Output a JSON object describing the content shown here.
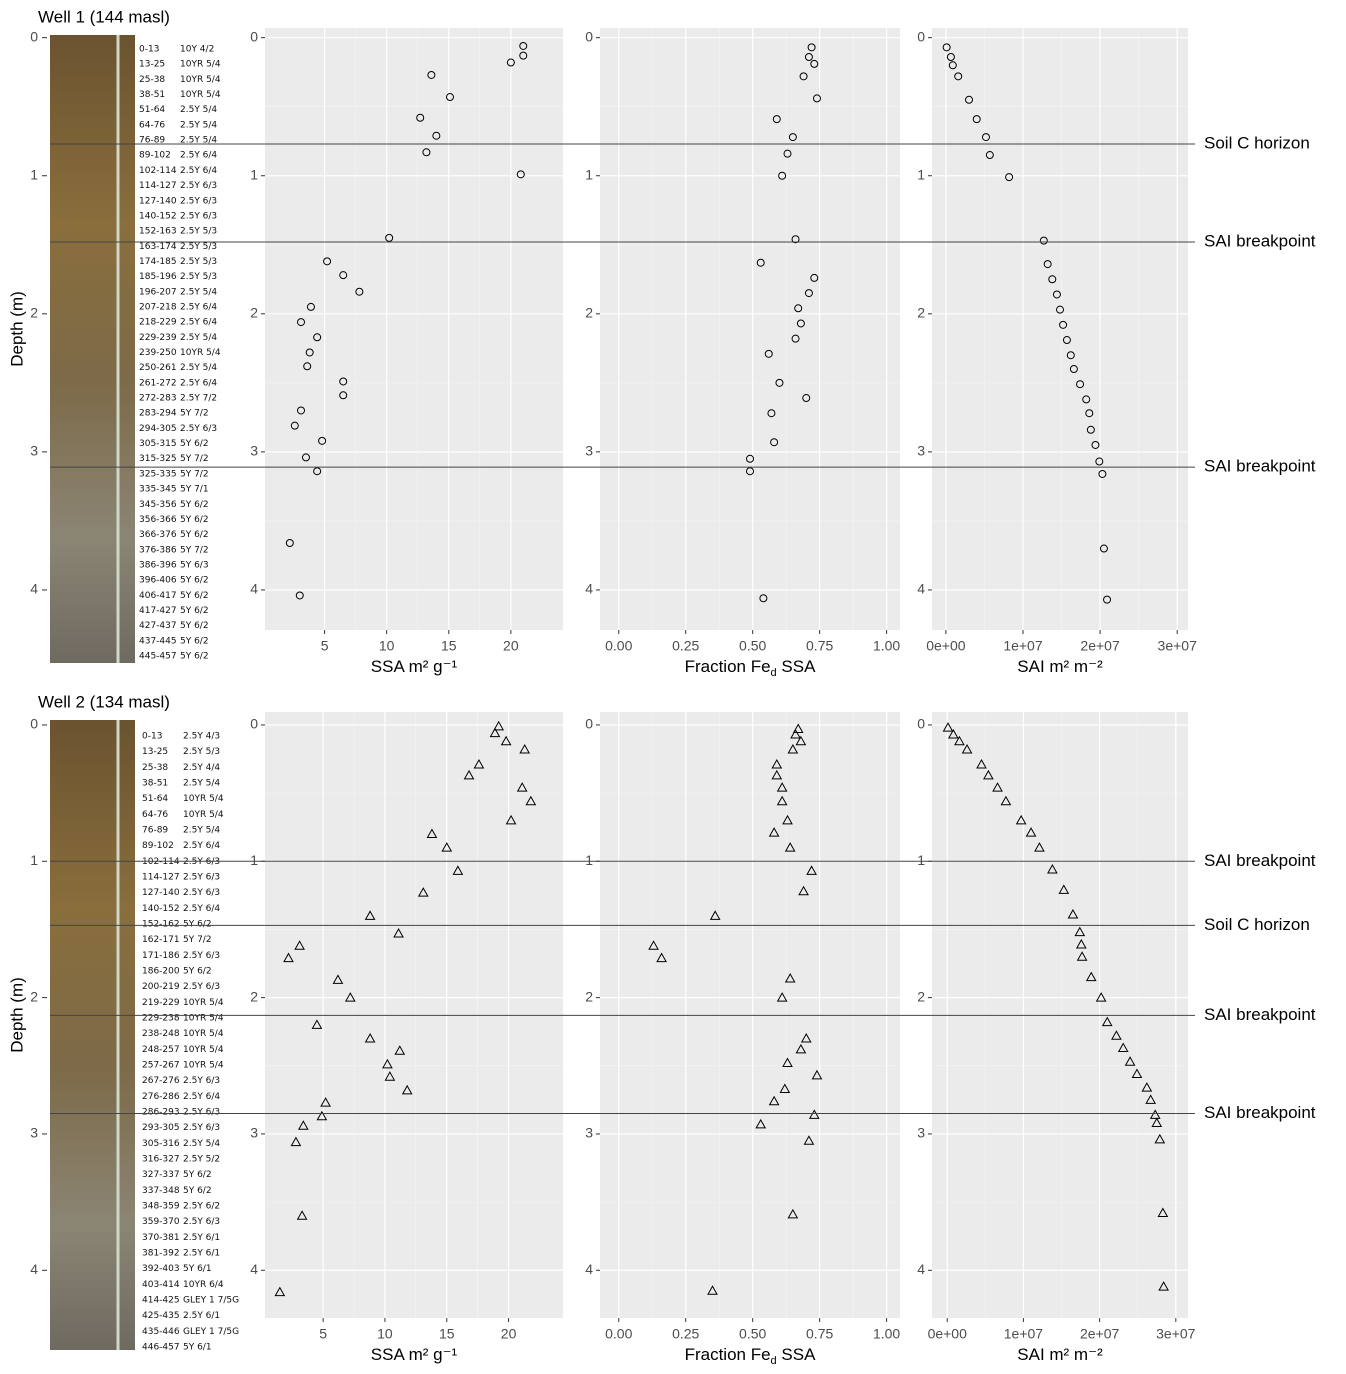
{
  "wells": [
    {
      "title": "Well 1 (144 masl)",
      "ylabel": "Depth (m)",
      "ylim": [
        -0.07,
        4.29
      ],
      "yticks": [
        0,
        1,
        2,
        3,
        4
      ],
      "layers": [
        [
          "0-13",
          "10Y 4/2"
        ],
        [
          "13-25",
          "10YR 5/4"
        ],
        [
          "25-38",
          "10YR 5/4"
        ],
        [
          "38-51",
          "10YR 5/4"
        ],
        [
          "51-64",
          "2.5Y 5/4"
        ],
        [
          "64-76",
          "2.5Y 5/4"
        ],
        [
          "76-89",
          "2.5Y 5/4"
        ],
        [
          "89-102",
          "2.5Y 6/4"
        ],
        [
          "102-114",
          "2.5Y 6/4"
        ],
        [
          "114-127",
          "2.5Y 6/3"
        ],
        [
          "127-140",
          "2.5Y 6/3"
        ],
        [
          "140-152",
          "2.5Y 6/3"
        ],
        [
          "152-163",
          "2.5Y 5/3"
        ],
        [
          "163-174",
          "2.5Y 5/3"
        ],
        [
          "174-185",
          "2.5Y 5/3"
        ],
        [
          "185-196",
          "2.5Y 5/3"
        ],
        [
          "196-207",
          "2.5Y 5/4"
        ],
        [
          "207-218",
          "2.5Y 6/4"
        ],
        [
          "218-229",
          "2.5Y 6/4"
        ],
        [
          "229-239",
          "2.5Y 5/4"
        ],
        [
          "239-250",
          "10YR 5/4"
        ],
        [
          "250-261",
          "2.5Y 5/4"
        ],
        [
          "261-272",
          "2.5Y 6/4"
        ],
        [
          "272-283",
          "2.5Y 7/2"
        ],
        [
          "283-294",
          "5Y 7/2"
        ],
        [
          "294-305",
          "2.5Y 6/3"
        ],
        [
          "305-315",
          "5Y 6/2"
        ],
        [
          "315-325",
          "5Y 7/2"
        ],
        [
          "325-335",
          "5Y 7/2"
        ],
        [
          "335-345",
          "5Y 7/1"
        ],
        [
          "345-356",
          "5Y 6/2"
        ],
        [
          "356-366",
          "5Y 6/2"
        ],
        [
          "366-376",
          "5Y 6/2"
        ],
        [
          "376-386",
          "5Y 7/2"
        ],
        [
          "386-396",
          "5Y 6/3"
        ],
        [
          "396-406",
          "5Y 6/2"
        ],
        [
          "406-417",
          "5Y 6/2"
        ],
        [
          "417-427",
          "5Y 6/2"
        ],
        [
          "427-437",
          "5Y 6/2"
        ],
        [
          "437-445",
          "5Y 6/2"
        ],
        [
          "445-457",
          "5Y 6/2"
        ]
      ],
      "lines": [
        {
          "depth": 0.77,
          "label": "Soil C horizon"
        },
        {
          "depth": 1.48,
          "label": "SAI breakpoint"
        },
        {
          "depth": 3.11,
          "label": "SAI breakpoint"
        }
      ]
    },
    {
      "title": "Well 2 (134 masl)",
      "ylabel": "Depth (m)",
      "ylim": [
        -0.095,
        4.35
      ],
      "yticks": [
        0,
        1,
        2,
        3,
        4
      ],
      "layers": [
        [
          "0-13",
          "2.5Y 4/3"
        ],
        [
          "13-25",
          "2.5Y 5/3"
        ],
        [
          "25-38",
          "2.5Y 4/4"
        ],
        [
          "38-51",
          "2.5Y 5/4"
        ],
        [
          "51-64",
          "10YR 5/4"
        ],
        [
          "64-76",
          "10YR 5/4"
        ],
        [
          "76-89",
          "2.5Y 5/4"
        ],
        [
          "89-102",
          "2.5Y 6/4"
        ],
        [
          "102-114",
          "2.5Y 6/3"
        ],
        [
          "114-127",
          "2.5Y 6/3"
        ],
        [
          "127-140",
          "2.5Y 6/3"
        ],
        [
          "140-152",
          "2.5Y 6/4"
        ],
        [
          "152-162",
          "5Y 6/2"
        ],
        [
          "162-171",
          "5Y 7/2"
        ],
        [
          "171-186",
          "2.5Y 6/3"
        ],
        [
          "186-200",
          "5Y 6/2"
        ],
        [
          "200-219",
          "2.5Y 6/3"
        ],
        [
          "219-229",
          "10YR 5/4"
        ],
        [
          "229-238",
          "10YR 5/4"
        ],
        [
          "238-248",
          "10YR 5/4"
        ],
        [
          "248-257",
          "10YR 5/4"
        ],
        [
          "257-267",
          "10YR 5/4"
        ],
        [
          "267-276",
          "2.5Y 6/3"
        ],
        [
          "276-286",
          "2.5Y 6/4"
        ],
        [
          "286-293",
          "2.5Y 6/3"
        ],
        [
          "293-305",
          "2.5Y 6/3"
        ],
        [
          "305-316",
          "2.5Y 5/4"
        ],
        [
          "316-327",
          "2.5Y 5/2"
        ],
        [
          "327-337",
          "5Y 6/2"
        ],
        [
          "337-348",
          "5Y 6/2"
        ],
        [
          "348-359",
          "2.5Y 6/2"
        ],
        [
          "359-370",
          "2.5Y 6/3"
        ],
        [
          "370-381",
          "2.5Y 6/1"
        ],
        [
          "381-392",
          "2.5Y 6/1"
        ],
        [
          "392-403",
          "5Y 6/1"
        ],
        [
          "403-414",
          "10YR 6/4"
        ],
        [
          "414-425",
          "GLEY 1 7/5G"
        ],
        [
          "425-435",
          "2.5Y 6/1"
        ],
        [
          "435-446",
          "GLEY 1 7/5G"
        ],
        [
          "446-457",
          "5Y 6/1"
        ]
      ],
      "lines": [
        {
          "depth": 1.0,
          "label": "SAI breakpoint"
        },
        {
          "depth": 1.47,
          "label": "Soil C horizon"
        },
        {
          "depth": 2.13,
          "label": "SAI breakpoint"
        },
        {
          "depth": 2.85,
          "label": "SAI breakpoint"
        }
      ]
    }
  ],
  "chart_data": [
    {
      "type": "scatter",
      "shape": "circle",
      "color": "#000000",
      "xlabel": [
        "SSA m² g⁻¹"
      ],
      "xlim": [
        0.2,
        24.2
      ],
      "xticks": [
        5,
        10,
        15,
        20
      ],
      "ylim": [
        -0.07,
        4.29
      ],
      "yticks": [
        0,
        1,
        2,
        3,
        4
      ],
      "x": [
        21.0,
        21.0,
        20.0,
        13.6,
        15.1,
        12.7,
        14.0,
        13.2,
        20.8,
        10.2,
        5.2,
        6.5,
        7.8,
        3.9,
        3.1,
        4.4,
        3.8,
        3.6,
        6.5,
        6.5,
        3.1,
        2.6,
        4.8,
        3.5,
        4.4,
        2.2,
        3.0
      ],
      "values": [
        0.06,
        0.13,
        0.18,
        0.27,
        0.43,
        0.58,
        0.71,
        0.83,
        0.99,
        1.45,
        1.62,
        1.72,
        1.84,
        1.95,
        2.06,
        2.17,
        2.28,
        2.38,
        2.49,
        2.59,
        2.7,
        2.81,
        2.92,
        3.04,
        3.14,
        3.66,
        4.04
      ]
    },
    {
      "type": "scatter",
      "shape": "circle",
      "color": "#000000",
      "xlabel": [
        "Fraction Fe",
        "d",
        " SSA"
      ],
      "xlim": [
        -0.07,
        1.05
      ],
      "xticks": [
        {
          "value": 0,
          "label": "0.00"
        },
        {
          "value": 0.25,
          "label": "0.25"
        },
        {
          "value": 0.5,
          "label": "0.50"
        },
        {
          "value": 0.75,
          "label": "0.75"
        },
        {
          "value": 1,
          "label": "1.00"
        }
      ],
      "ylim": [
        -0.07,
        4.29
      ],
      "yticks": [
        0,
        1,
        2,
        3,
        4
      ],
      "x": [
        0.72,
        0.71,
        0.73,
        0.69,
        0.74,
        0.59,
        0.65,
        0.63,
        0.61,
        0.66,
        0.53,
        0.73,
        0.71,
        0.67,
        0.68,
        0.66,
        0.56,
        0.6,
        0.7,
        0.57,
        0.58,
        0.49,
        0.49,
        0.54
      ],
      "values": [
        0.07,
        0.14,
        0.19,
        0.28,
        0.44,
        0.59,
        0.72,
        0.84,
        1.0,
        1.46,
        1.63,
        1.74,
        1.85,
        1.96,
        2.07,
        2.18,
        2.29,
        2.5,
        2.61,
        2.72,
        2.93,
        3.05,
        3.14,
        4.06
      ]
    },
    {
      "type": "scatter",
      "shape": "circle",
      "color": "#000000",
      "xlabel": [
        "SAI m² m⁻²"
      ],
      "xlim": [
        -1800000,
        31400000
      ],
      "xticks": [
        {
          "value": 0,
          "label": "0e+00"
        },
        {
          "value": 10000000,
          "label": "1e+07"
        },
        {
          "value": 20000000,
          "label": "2e+07"
        },
        {
          "value": 30000000,
          "label": "3e+07"
        }
      ],
      "ylim": [
        -0.07,
        4.29
      ],
      "yticks": [
        0,
        1,
        2,
        3,
        4
      ],
      "x": [
        100000,
        650000,
        900000,
        1600000,
        3000000,
        4000000,
        5200000,
        5700000,
        8200000,
        12700000,
        13200000,
        13800000,
        14400000,
        14800000,
        15200000,
        15700000,
        16200000,
        16600000,
        17400000,
        18200000,
        18600000,
        18800000,
        19400000,
        19900000,
        20300000,
        20500000,
        20900000
      ],
      "values": [
        0.07,
        0.14,
        0.2,
        0.28,
        0.45,
        0.59,
        0.72,
        0.85,
        1.01,
        1.47,
        1.64,
        1.75,
        1.86,
        1.97,
        2.08,
        2.19,
        2.3,
        2.4,
        2.51,
        2.62,
        2.72,
        2.84,
        2.95,
        3.07,
        3.16,
        3.7,
        4.07
      ]
    },
    {
      "type": "scatter",
      "shape": "triangle",
      "color": "#000000",
      "xlabel": [
        "SSA m² g⁻¹"
      ],
      "xlim": [
        0.3,
        24.4
      ],
      "xticks": [
        5,
        10,
        15,
        20
      ],
      "ylim": [
        -0.095,
        4.35
      ],
      "yticks": [
        0,
        1,
        2,
        3,
        4
      ],
      "x": [
        19.2,
        18.9,
        19.8,
        21.3,
        17.6,
        16.8,
        21.1,
        21.8,
        20.2,
        13.8,
        15.0,
        15.9,
        13.1,
        8.8,
        11.1,
        3.1,
        2.2,
        6.2,
        7.2,
        4.5,
        8.8,
        11.2,
        10.2,
        10.4,
        11.8,
        5.2,
        4.9,
        3.4,
        2.8,
        3.3,
        1.5
      ],
      "values": [
        0.01,
        0.06,
        0.12,
        0.18,
        0.29,
        0.37,
        0.46,
        0.56,
        0.7,
        0.8,
        0.9,
        1.07,
        1.23,
        1.4,
        1.53,
        1.62,
        1.71,
        1.87,
        2.0,
        2.2,
        2.3,
        2.39,
        2.49,
        2.58,
        2.68,
        2.77,
        2.87,
        2.94,
        3.06,
        3.6,
        4.16
      ]
    },
    {
      "type": "scatter",
      "shape": "triangle",
      "color": "#000000",
      "xlabel": [
        "Fraction Fe",
        "d",
        " SSA"
      ],
      "xlim": [
        -0.07,
        1.05
      ],
      "xticks": [
        {
          "value": 0,
          "label": "0.00"
        },
        {
          "value": 0.25,
          "label": "0.25"
        },
        {
          "value": 0.5,
          "label": "0.50"
        },
        {
          "value": 0.75,
          "label": "0.75"
        },
        {
          "value": 1,
          "label": "1.00"
        }
      ],
      "ylim": [
        -0.095,
        4.35
      ],
      "yticks": [
        0,
        1,
        2,
        3,
        4
      ],
      "x": [
        0.67,
        0.66,
        0.68,
        0.65,
        0.59,
        0.59,
        0.61,
        0.61,
        0.63,
        0.58,
        0.64,
        0.72,
        0.69,
        0.36,
        0.13,
        0.16,
        0.64,
        0.61,
        0.7,
        0.68,
        0.63,
        0.74,
        0.62,
        0.58,
        0.73,
        0.53,
        0.71,
        0.65,
        0.35
      ],
      "values": [
        0.03,
        0.07,
        0.12,
        0.18,
        0.29,
        0.37,
        0.46,
        0.56,
        0.7,
        0.79,
        0.9,
        1.07,
        1.22,
        1.4,
        1.62,
        1.71,
        1.86,
        2.0,
        2.3,
        2.38,
        2.48,
        2.57,
        2.67,
        2.76,
        2.86,
        2.93,
        3.05,
        3.59,
        4.15
      ]
    },
    {
      "type": "scatter",
      "shape": "triangle",
      "color": "#000000",
      "xlabel": [
        "SAI m² m⁻²"
      ],
      "xlim": [
        -2000000,
        31600000
      ],
      "xticks": [
        {
          "value": 0,
          "label": "0e+00"
        },
        {
          "value": 10000000,
          "label": "1e+07"
        },
        {
          "value": 20000000,
          "label": "2e+07"
        },
        {
          "value": 30000000,
          "label": "3e+07"
        }
      ],
      "ylim": [
        -0.095,
        4.35
      ],
      "yticks": [
        0,
        1,
        2,
        3,
        4
      ],
      "x": [
        100000,
        800000,
        1600000,
        2600000,
        4500000,
        5400000,
        6600000,
        7700000,
        9700000,
        11000000,
        12100000,
        13800000,
        15300000,
        16500000,
        17400000,
        17600000,
        17700000,
        18900000,
        20200000,
        21000000,
        22200000,
        23100000,
        24000000,
        24900000,
        26200000,
        26700000,
        27300000,
        27500000,
        27900000,
        28300000,
        28400000
      ],
      "values": [
        0.02,
        0.07,
        0.12,
        0.18,
        0.29,
        0.37,
        0.46,
        0.56,
        0.7,
        0.79,
        0.9,
        1.06,
        1.21,
        1.39,
        1.52,
        1.61,
        1.7,
        1.85,
        2.0,
        2.18,
        2.28,
        2.37,
        2.47,
        2.56,
        2.66,
        2.75,
        2.86,
        2.92,
        3.04,
        3.58,
        4.12
      ]
    }
  ]
}
